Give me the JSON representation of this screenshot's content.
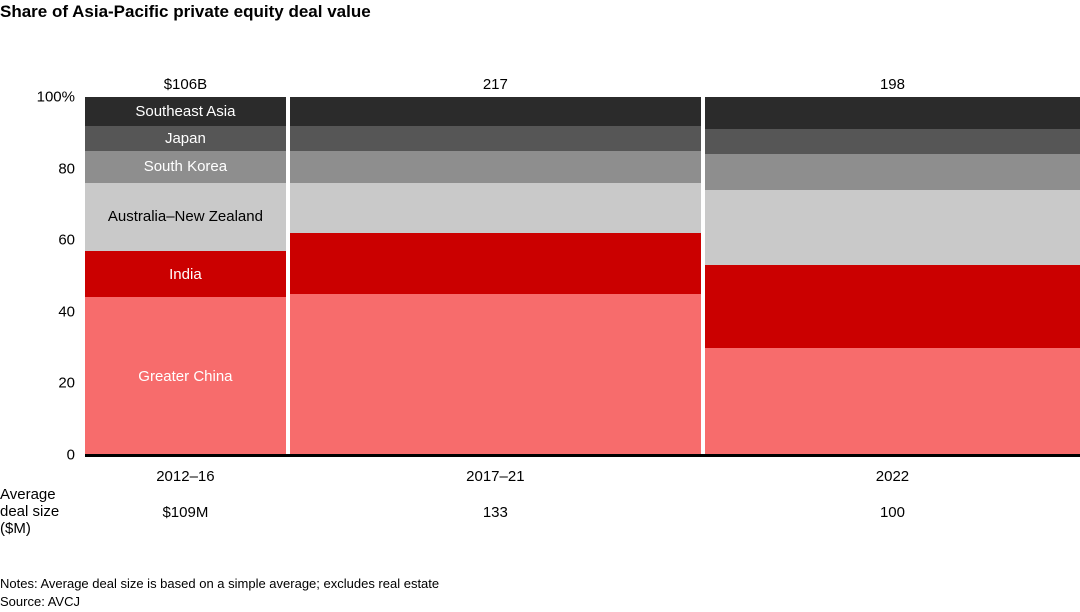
{
  "title": "Share of Asia-Pacific private equity deal value",
  "chart_data": {
    "type": "bar",
    "subtype": "marimekko-100pct-stacked",
    "title": "Share of Asia-Pacific private equity deal value",
    "categories": [
      "2012–16",
      "2017–21",
      "2022"
    ],
    "bar_totals": [
      106,
      217,
      198
    ],
    "bar_total_labels": [
      "$106B",
      "217",
      "198"
    ],
    "y_ticks": [
      "100%",
      "80",
      "60",
      "40",
      "20",
      "0"
    ],
    "ylim": [
      0,
      100
    ],
    "grid": false,
    "legend_position": "labels-inside-first-bar",
    "series": [
      {
        "name": "Greater China",
        "color": "#f76c6c",
        "label_color": "#ffffff",
        "values": [
          44,
          45,
          30
        ]
      },
      {
        "name": "India",
        "color": "#cb0000",
        "label_color": "#ffffff",
        "values": [
          13,
          17,
          23
        ]
      },
      {
        "name": "Australia–New Zealand",
        "color": "#c9c9c9",
        "label_color": "#000000",
        "values": [
          19,
          14,
          21
        ]
      },
      {
        "name": "South Korea",
        "color": "#8e8e8e",
        "label_color": "#ffffff",
        "values": [
          9,
          9,
          10
        ]
      },
      {
        "name": "Japan",
        "color": "#565656",
        "label_color": "#ffffff",
        "values": [
          7,
          7,
          7
        ]
      },
      {
        "name": "Southeast Asia",
        "color": "#2b2b2b",
        "label_color": "#ffffff",
        "values": [
          8,
          8,
          9
        ]
      }
    ],
    "avg_deal_size": {
      "label": "Average deal size ($M)",
      "label_lines": [
        "Average",
        "deal size",
        "($M)"
      ],
      "values": [
        "$109M",
        "133",
        "100"
      ]
    },
    "notes": "Notes: Average deal size is based on a simple average; excludes real estate",
    "source": "Source: AVCJ"
  }
}
